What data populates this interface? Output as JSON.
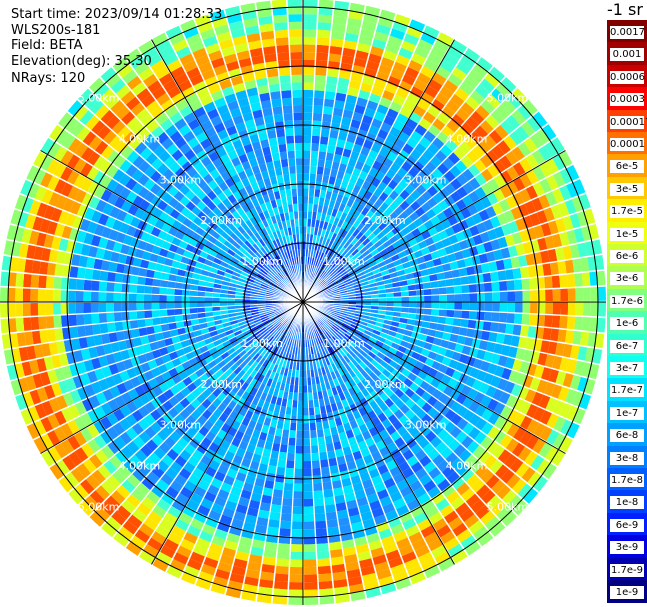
{
  "info": {
    "start_time": "Start time: 2023/09/14 01:28:33",
    "device": "WLS200s-181",
    "field": "Field: BETA",
    "elevation": "Elevation(deg): 35.30",
    "nrays": "NRays: 120"
  },
  "ring_labels": [
    "1.00km",
    "2.00km",
    "3.00km",
    "4.00km",
    "5.00km"
  ],
  "colorbar": {
    "unit": "-1 sr",
    "labels": [
      "0.0017",
      "0.001",
      "0.0006",
      "0.0003",
      "0.00017",
      "0.0001",
      "6e-5",
      "3e-5",
      "1.7e-5",
      "1e-5",
      "6e-6",
      "3e-6",
      "1.7e-6",
      "1e-6",
      "6e-7",
      "3e-7",
      "1.7e-7",
      "1e-7",
      "6e-8",
      "3e-8",
      "1.7e-8",
      "1e-8",
      "6e-9",
      "3e-9",
      "1.7e-9",
      "1e-9"
    ],
    "colors": [
      "#800000",
      "#a00000",
      "#c80000",
      "#ff0000",
      "#ff4000",
      "#ff7000",
      "#ffa000",
      "#ffc800",
      "#ffee00",
      "#f0ff10",
      "#d0ff30",
      "#b0ff50",
      "#80ff80",
      "#50ffb0",
      "#30ffd0",
      "#10fff0",
      "#00e0ff",
      "#00c0ff",
      "#00a0ff",
      "#0080ff",
      "#0060ff",
      "#0040ff",
      "#0020ff",
      "#0000e0",
      "#0000b0",
      "#000080"
    ]
  }
}
